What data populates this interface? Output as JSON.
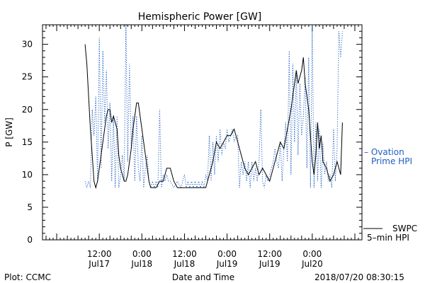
{
  "chart_data": {
    "type": "line",
    "title": "Hemispheric Power [GW]",
    "ylabel": "P [GW]",
    "xlabel": "Date and Time",
    "ylim": [
      0,
      33
    ],
    "yticks": [
      0,
      5,
      10,
      15,
      20,
      25,
      30
    ],
    "xlim": [
      "2018-07-16T20:00",
      "2018-07-20T14:00"
    ],
    "xticks": [
      {
        "t": "2018-07-17T12:00",
        "time": "12:00",
        "date": "Jul17"
      },
      {
        "t": "2018-07-18T00:00",
        "time": "0:00",
        "date": "Jul18"
      },
      {
        "t": "2018-07-18T12:00",
        "time": "12:00",
        "date": "Jul18"
      },
      {
        "t": "2018-07-19T00:00",
        "time": "0:00",
        "date": "Jul19"
      },
      {
        "t": "2018-07-19T12:00",
        "time": "12:00",
        "date": "Jul19"
      },
      {
        "t": "2018-07-20T00:00",
        "time": "0:00",
        "date": "Jul20"
      }
    ],
    "series": [
      {
        "name": "SWPC 5-min HPI",
        "color": "#000000",
        "style": "solid",
        "points": [
          [
            "2018-07-17T08:00",
            30
          ],
          [
            "2018-07-17T08:30",
            27
          ],
          [
            "2018-07-17T09:00",
            22
          ],
          [
            "2018-07-17T09:30",
            17
          ],
          [
            "2018-07-17T10:00",
            13
          ],
          [
            "2018-07-17T10:30",
            9
          ],
          [
            "2018-07-17T11:00",
            8
          ],
          [
            "2018-07-17T11:30",
            9
          ],
          [
            "2018-07-17T12:00",
            11
          ],
          [
            "2018-07-17T12:30",
            13
          ],
          [
            "2018-07-17T13:00",
            15
          ],
          [
            "2018-07-17T13:30",
            17
          ],
          [
            "2018-07-17T14:00",
            19
          ],
          [
            "2018-07-17T14:30",
            20
          ],
          [
            "2018-07-17T15:00",
            20
          ],
          [
            "2018-07-17T15:30",
            18
          ],
          [
            "2018-07-17T16:00",
            19
          ],
          [
            "2018-07-17T16:30",
            18
          ],
          [
            "2018-07-17T17:00",
            17
          ],
          [
            "2018-07-17T17:30",
            13
          ],
          [
            "2018-07-17T18:00",
            11
          ],
          [
            "2018-07-17T18:30",
            10
          ],
          [
            "2018-07-17T19:00",
            9
          ],
          [
            "2018-07-17T19:30",
            9
          ],
          [
            "2018-07-17T20:00",
            10
          ],
          [
            "2018-07-17T20:30",
            12
          ],
          [
            "2018-07-17T21:00",
            14
          ],
          [
            "2018-07-17T21:30",
            17
          ],
          [
            "2018-07-17T22:00",
            19
          ],
          [
            "2018-07-17T22:30",
            21
          ],
          [
            "2018-07-17T23:00",
            21
          ],
          [
            "2018-07-17T23:30",
            19
          ],
          [
            "2018-07-18T00:00",
            17
          ],
          [
            "2018-07-18T00:30",
            15
          ],
          [
            "2018-07-18T01:00",
            13
          ],
          [
            "2018-07-18T01:30",
            11
          ],
          [
            "2018-07-18T02:00",
            9
          ],
          [
            "2018-07-18T02:30",
            8
          ],
          [
            "2018-07-18T03:00",
            8
          ],
          [
            "2018-07-18T04:00",
            8
          ],
          [
            "2018-07-18T05:00",
            9
          ],
          [
            "2018-07-18T06:00",
            9
          ],
          [
            "2018-07-18T07:00",
            11
          ],
          [
            "2018-07-18T08:00",
            11
          ],
          [
            "2018-07-18T09:00",
            9
          ],
          [
            "2018-07-18T10:00",
            8
          ],
          [
            "2018-07-18T12:00",
            8
          ],
          [
            "2018-07-18T14:00",
            8
          ],
          [
            "2018-07-18T16:00",
            8
          ],
          [
            "2018-07-18T18:00",
            8
          ],
          [
            "2018-07-18T19:00",
            10
          ],
          [
            "2018-07-18T20:00",
            12
          ],
          [
            "2018-07-18T21:00",
            15
          ],
          [
            "2018-07-18T22:00",
            14
          ],
          [
            "2018-07-18T23:00",
            15
          ],
          [
            "2018-07-19T00:00",
            16
          ],
          [
            "2018-07-19T01:00",
            16
          ],
          [
            "2018-07-19T02:00",
            17
          ],
          [
            "2018-07-19T03:00",
            15
          ],
          [
            "2018-07-19T04:00",
            13
          ],
          [
            "2018-07-19T05:00",
            11
          ],
          [
            "2018-07-19T06:00",
            10
          ],
          [
            "2018-07-19T07:00",
            11
          ],
          [
            "2018-07-19T08:00",
            12
          ],
          [
            "2018-07-19T09:00",
            10
          ],
          [
            "2018-07-19T10:00",
            11
          ],
          [
            "2018-07-19T11:00",
            10
          ],
          [
            "2018-07-19T12:00",
            9
          ],
          [
            "2018-07-19T13:00",
            11
          ],
          [
            "2018-07-19T14:00",
            13
          ],
          [
            "2018-07-19T15:00",
            15
          ],
          [
            "2018-07-19T16:00",
            14
          ],
          [
            "2018-07-19T17:00",
            17
          ],
          [
            "2018-07-19T18:00",
            20
          ],
          [
            "2018-07-19T19:00",
            24
          ],
          [
            "2018-07-19T19:30",
            26
          ],
          [
            "2018-07-19T20:00",
            24
          ],
          [
            "2018-07-19T21:00",
            26
          ],
          [
            "2018-07-19T21:30",
            28
          ],
          [
            "2018-07-19T22:00",
            24
          ],
          [
            "2018-07-19T23:00",
            20
          ],
          [
            "2018-07-20T00:00",
            12
          ],
          [
            "2018-07-20T00:30",
            10
          ],
          [
            "2018-07-20T01:00",
            13
          ],
          [
            "2018-07-20T01:30",
            18
          ],
          [
            "2018-07-20T02:00",
            14
          ],
          [
            "2018-07-20T02:30",
            16
          ],
          [
            "2018-07-20T03:00",
            12
          ],
          [
            "2018-07-20T04:00",
            11
          ],
          [
            "2018-07-20T05:00",
            9
          ],
          [
            "2018-07-20T06:00",
            10
          ],
          [
            "2018-07-20T07:00",
            12
          ],
          [
            "2018-07-20T08:00",
            10
          ],
          [
            "2018-07-20T08:30",
            18
          ]
        ]
      },
      {
        "name": "Ovation Prime HPI",
        "color": "#2060c0",
        "style": "dotted",
        "points": [
          [
            "2018-07-17T08:00",
            9
          ],
          [
            "2018-07-17T08:30",
            8
          ],
          [
            "2018-07-17T09:00",
            9
          ],
          [
            "2018-07-17T09:30",
            8
          ],
          [
            "2018-07-17T10:00",
            20
          ],
          [
            "2018-07-17T10:30",
            16
          ],
          [
            "2018-07-17T11:00",
            22
          ],
          [
            "2018-07-17T11:30",
            9
          ],
          [
            "2018-07-17T12:00",
            31
          ],
          [
            "2018-07-17T12:30",
            11
          ],
          [
            "2018-07-17T13:00",
            29
          ],
          [
            "2018-07-17T13:30",
            18
          ],
          [
            "2018-07-17T14:00",
            26
          ],
          [
            "2018-07-17T14:30",
            14
          ],
          [
            "2018-07-17T15:00",
            21
          ],
          [
            "2018-07-17T15:30",
            9
          ],
          [
            "2018-07-17T16:00",
            19
          ],
          [
            "2018-07-17T16:30",
            8
          ],
          [
            "2018-07-17T17:00",
            19
          ],
          [
            "2018-07-17T17:30",
            8
          ],
          [
            "2018-07-17T18:00",
            10
          ],
          [
            "2018-07-17T18:30",
            13
          ],
          [
            "2018-07-17T19:00",
            9
          ],
          [
            "2018-07-17T19:30",
            33
          ],
          [
            "2018-07-17T20:00",
            12
          ],
          [
            "2018-07-17T20:30",
            27
          ],
          [
            "2018-07-17T21:00",
            14
          ],
          [
            "2018-07-17T21:30",
            19
          ],
          [
            "2018-07-17T22:00",
            9
          ],
          [
            "2018-07-17T22:30",
            19
          ],
          [
            "2018-07-17T23:00",
            11
          ],
          [
            "2018-07-17T23:30",
            9
          ],
          [
            "2018-07-18T00:00",
            16
          ],
          [
            "2018-07-18T00:30",
            8
          ],
          [
            "2018-07-18T01:00",
            11
          ],
          [
            "2018-07-18T01:30",
            13
          ],
          [
            "2018-07-18T02:00",
            9
          ],
          [
            "2018-07-18T02:30",
            8
          ],
          [
            "2018-07-18T03:00",
            9
          ],
          [
            "2018-07-18T03:30",
            8
          ],
          [
            "2018-07-18T04:00",
            9
          ],
          [
            "2018-07-18T04:30",
            8
          ],
          [
            "2018-07-18T05:00",
            20
          ],
          [
            "2018-07-18T05:30",
            8
          ],
          [
            "2018-07-18T06:00",
            10
          ],
          [
            "2018-07-18T06:30",
            9
          ],
          [
            "2018-07-18T07:00",
            10
          ],
          [
            "2018-07-18T07:30",
            9
          ],
          [
            "2018-07-18T08:00",
            9
          ],
          [
            "2018-07-18T09:00",
            8
          ],
          [
            "2018-07-18T10:00",
            9
          ],
          [
            "2018-07-18T11:00",
            8
          ],
          [
            "2018-07-18T12:00",
            10
          ],
          [
            "2018-07-18T12:30",
            8
          ],
          [
            "2018-07-18T13:00",
            9
          ],
          [
            "2018-07-18T13:30",
            8
          ],
          [
            "2018-07-18T14:00",
            9
          ],
          [
            "2018-07-18T14:30",
            8
          ],
          [
            "2018-07-18T15:00",
            9
          ],
          [
            "2018-07-18T15:30",
            8
          ],
          [
            "2018-07-18T16:00",
            9
          ],
          [
            "2018-07-18T16:30",
            8
          ],
          [
            "2018-07-18T17:00",
            9
          ],
          [
            "2018-07-18T17:30",
            8
          ],
          [
            "2018-07-18T18:00",
            10
          ],
          [
            "2018-07-18T18:30",
            9
          ],
          [
            "2018-07-18T19:00",
            16
          ],
          [
            "2018-07-18T19:30",
            9
          ],
          [
            "2018-07-18T20:00",
            15
          ],
          [
            "2018-07-18T20:30",
            10
          ],
          [
            "2018-07-18T21:00",
            16
          ],
          [
            "2018-07-18T21:30",
            12
          ],
          [
            "2018-07-18T22:00",
            17
          ],
          [
            "2018-07-18T22:30",
            13
          ],
          [
            "2018-07-18T23:00",
            15
          ],
          [
            "2018-07-18T23:30",
            14
          ],
          [
            "2018-07-19T00:00",
            17
          ],
          [
            "2018-07-19T00:30",
            15
          ],
          [
            "2018-07-19T01:00",
            16
          ],
          [
            "2018-07-19T01:30",
            17
          ],
          [
            "2018-07-19T02:00",
            15
          ],
          [
            "2018-07-19T02:30",
            16
          ],
          [
            "2018-07-19T03:00",
            16
          ],
          [
            "2018-07-19T03:30",
            8
          ],
          [
            "2018-07-19T04:00",
            12
          ],
          [
            "2018-07-19T04:30",
            10
          ],
          [
            "2018-07-19T05:00",
            12
          ],
          [
            "2018-07-19T05:30",
            9
          ],
          [
            "2018-07-19T06:00",
            12
          ],
          [
            "2018-07-19T06:30",
            8
          ],
          [
            "2018-07-19T07:00",
            12
          ],
          [
            "2018-07-19T07:30",
            9
          ],
          [
            "2018-07-19T08:00",
            11
          ],
          [
            "2018-07-19T08:30",
            9
          ],
          [
            "2018-07-19T09:00",
            12
          ],
          [
            "2018-07-19T09:30",
            20
          ],
          [
            "2018-07-19T10:00",
            9
          ],
          [
            "2018-07-19T10:30",
            8
          ],
          [
            "2018-07-19T11:00",
            10
          ],
          [
            "2018-07-19T11:30",
            9
          ],
          [
            "2018-07-19T12:00",
            10
          ],
          [
            "2018-07-19T12:30",
            11
          ],
          [
            "2018-07-19T13:00",
            12
          ],
          [
            "2018-07-19T13:30",
            14
          ],
          [
            "2018-07-19T14:00",
            12
          ],
          [
            "2018-07-19T14:30",
            11
          ],
          [
            "2018-07-19T15:00",
            15
          ],
          [
            "2018-07-19T15:30",
            9
          ],
          [
            "2018-07-19T16:00",
            14
          ],
          [
            "2018-07-19T16:30",
            18
          ],
          [
            "2018-07-19T17:00",
            12
          ],
          [
            "2018-07-19T17:30",
            29
          ],
          [
            "2018-07-19T18:00",
            10
          ],
          [
            "2018-07-19T18:30",
            27
          ],
          [
            "2018-07-19T19:00",
            15
          ],
          [
            "2018-07-19T19:30",
            26
          ],
          [
            "2018-07-19T20:00",
            13
          ],
          [
            "2018-07-19T20:30",
            24
          ],
          [
            "2018-07-19T21:00",
            16
          ],
          [
            "2018-07-19T21:30",
            19
          ],
          [
            "2018-07-19T22:00",
            25
          ],
          [
            "2018-07-19T22:30",
            11
          ],
          [
            "2018-07-19T23:00",
            28
          ],
          [
            "2018-07-19T23:30",
            8
          ],
          [
            "2018-07-20T00:00",
            33
          ],
          [
            "2018-07-20T00:30",
            8
          ],
          [
            "2018-07-20T01:00",
            18
          ],
          [
            "2018-07-20T01:30",
            9
          ],
          [
            "2018-07-20T02:00",
            17
          ],
          [
            "2018-07-20T02:30",
            8
          ],
          [
            "2018-07-20T03:00",
            15
          ],
          [
            "2018-07-20T03:30",
            10
          ],
          [
            "2018-07-20T04:00",
            12
          ],
          [
            "2018-07-20T04:30",
            9
          ],
          [
            "2018-07-20T05:00",
            10
          ],
          [
            "2018-07-20T05:30",
            8
          ],
          [
            "2018-07-20T06:00",
            17
          ],
          [
            "2018-07-20T06:30",
            9
          ],
          [
            "2018-07-20T07:00",
            14
          ],
          [
            "2018-07-20T07:30",
            32
          ],
          [
            "2018-07-20T08:00",
            28
          ],
          [
            "2018-07-20T08:30",
            32
          ]
        ]
      }
    ]
  },
  "legend": {
    "ovation_line1": "– Ovation",
    "ovation_line2": "Prime HPI",
    "swpc_line1": "SWPC",
    "swpc_line2": "5–min HPI"
  },
  "footer": {
    "plot_credit": "Plot: CCMC",
    "timestamp": "2018/07/20 08:30:15"
  }
}
